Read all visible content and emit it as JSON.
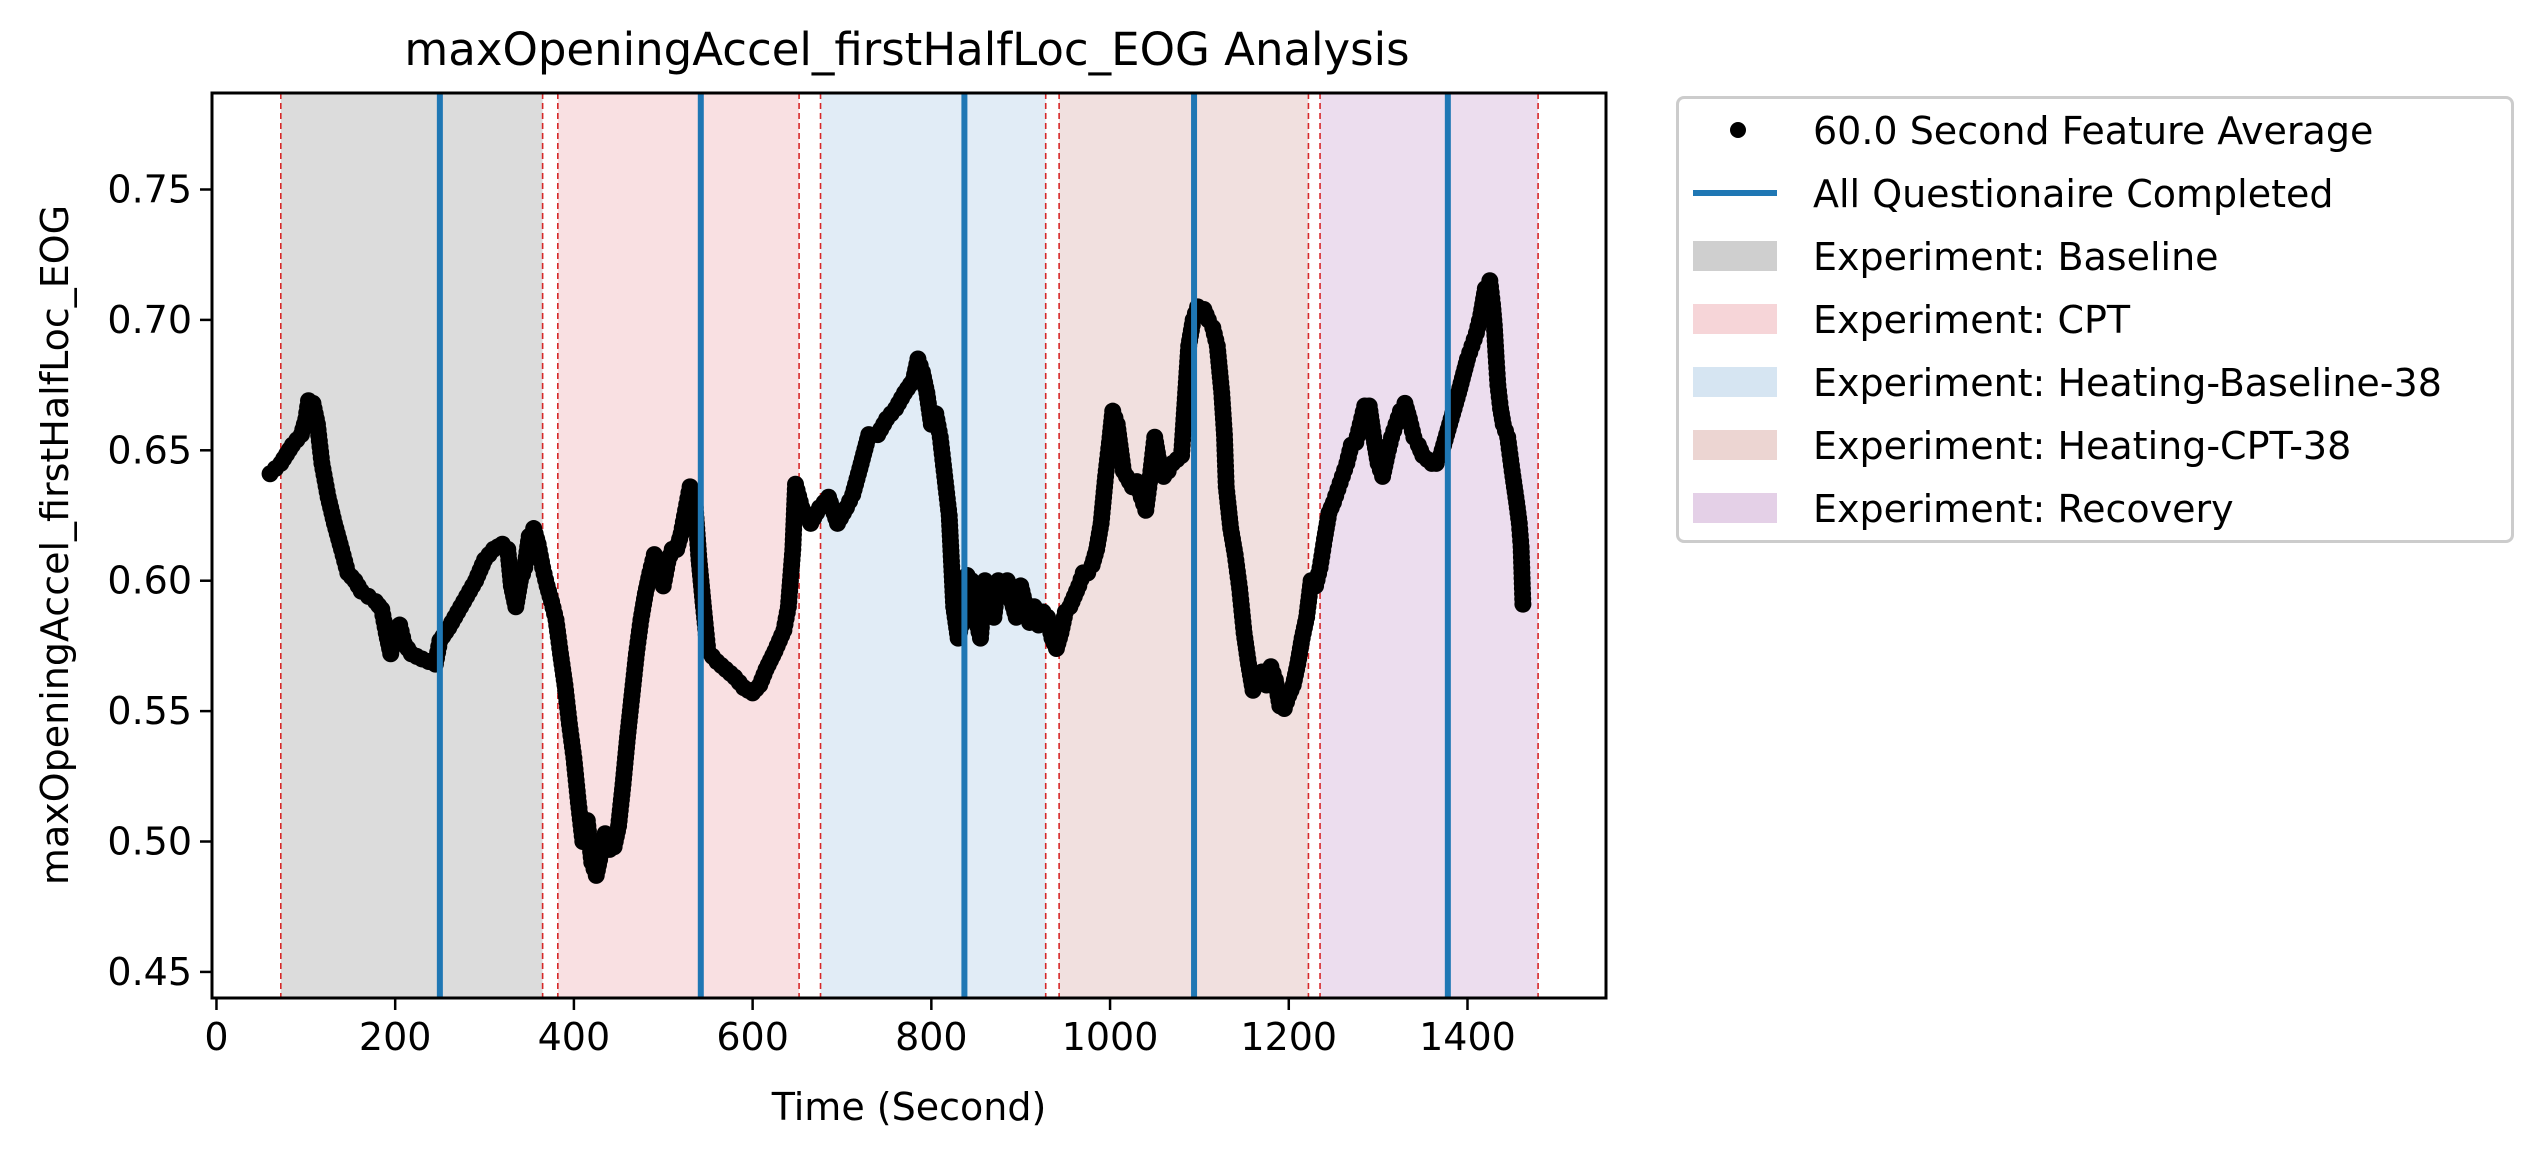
{
  "chart_data": {
    "type": "scatter",
    "title": "maxOpeningAccel_firstHalfLoc_EOG Analysis",
    "xlabel": "Time (Second)",
    "ylabel": "maxOpeningAccel_firstHalfLoc_EOG",
    "xlim": [
      -5,
      1555
    ],
    "ylim": [
      0.44,
      0.787
    ],
    "x_ticks": [
      0,
      200,
      400,
      600,
      800,
      1000,
      1200,
      1400
    ],
    "y_ticks": [
      0.45,
      0.5,
      0.55,
      0.6,
      0.65,
      0.7,
      0.75
    ],
    "y_tick_labels": [
      "0.45",
      "0.50",
      "0.55",
      "0.60",
      "0.65",
      "0.70",
      "0.75"
    ],
    "grid": false,
    "legend_position": "outside-right",
    "series": [
      {
        "name": "60.0 Second Feature Average",
        "style": "dots",
        "color": "#000000",
        "points": [
          [
            60,
            0.641
          ],
          [
            72,
            0.645
          ],
          [
            85,
            0.652
          ],
          [
            95,
            0.656
          ],
          [
            100,
            0.662
          ],
          [
            103,
            0.669
          ],
          [
            108,
            0.668
          ],
          [
            113,
            0.66
          ],
          [
            118,
            0.645
          ],
          [
            125,
            0.632
          ],
          [
            132,
            0.622
          ],
          [
            140,
            0.612
          ],
          [
            147,
            0.603
          ],
          [
            155,
            0.6
          ],
          [
            162,
            0.596
          ],
          [
            170,
            0.594
          ],
          [
            178,
            0.592
          ],
          [
            185,
            0.589
          ],
          [
            190,
            0.58
          ],
          [
            195,
            0.572
          ],
          [
            200,
            0.58
          ],
          [
            205,
            0.583
          ],
          [
            210,
            0.576
          ],
          [
            218,
            0.572
          ],
          [
            230,
            0.57
          ],
          [
            245,
            0.568
          ],
          [
            250,
            0.577
          ],
          [
            260,
            0.582
          ],
          [
            270,
            0.588
          ],
          [
            280,
            0.594
          ],
          [
            290,
            0.6
          ],
          [
            300,
            0.608
          ],
          [
            310,
            0.612
          ],
          [
            320,
            0.614
          ],
          [
            326,
            0.612
          ],
          [
            330,
            0.598
          ],
          [
            335,
            0.59
          ],
          [
            340,
            0.6
          ],
          [
            345,
            0.605
          ],
          [
            350,
            0.617
          ],
          [
            355,
            0.62
          ],
          [
            360,
            0.614
          ],
          [
            365,
            0.605
          ],
          [
            370,
            0.598
          ],
          [
            375,
            0.592
          ],
          [
            380,
            0.585
          ],
          [
            385,
            0.572
          ],
          [
            390,
            0.56
          ],
          [
            395,
            0.545
          ],
          [
            400,
            0.532
          ],
          [
            405,
            0.515
          ],
          [
            410,
            0.5
          ],
          [
            415,
            0.508
          ],
          [
            420,
            0.492
          ],
          [
            425,
            0.487
          ],
          [
            430,
            0.495
          ],
          [
            435,
            0.503
          ],
          [
            440,
            0.497
          ],
          [
            445,
            0.498
          ],
          [
            450,
            0.506
          ],
          [
            455,
            0.522
          ],
          [
            460,
            0.54
          ],
          [
            465,
            0.556
          ],
          [
            470,
            0.572
          ],
          [
            475,
            0.585
          ],
          [
            480,
            0.595
          ],
          [
            485,
            0.603
          ],
          [
            490,
            0.61
          ],
          [
            495,
            0.605
          ],
          [
            500,
            0.598
          ],
          [
            505,
            0.607
          ],
          [
            510,
            0.612
          ],
          [
            515,
            0.612
          ],
          [
            520,
            0.618
          ],
          [
            525,
            0.627
          ],
          [
            530,
            0.636
          ],
          [
            535,
            0.632
          ],
          [
            540,
            0.608
          ],
          [
            545,
            0.59
          ],
          [
            550,
            0.573
          ],
          [
            560,
            0.569
          ],
          [
            570,
            0.566
          ],
          [
            580,
            0.563
          ],
          [
            590,
            0.559
          ],
          [
            600,
            0.557
          ],
          [
            608,
            0.56
          ],
          [
            615,
            0.566
          ],
          [
            625,
            0.573
          ],
          [
            635,
            0.581
          ],
          [
            640,
            0.59
          ],
          [
            645,
            0.612
          ],
          [
            648,
            0.637
          ],
          [
            655,
            0.628
          ],
          [
            665,
            0.622
          ],
          [
            675,
            0.628
          ],
          [
            685,
            0.632
          ],
          [
            695,
            0.622
          ],
          [
            705,
            0.628
          ],
          [
            712,
            0.633
          ],
          [
            720,
            0.643
          ],
          [
            730,
            0.656
          ],
          [
            740,
            0.656
          ],
          [
            750,
            0.662
          ],
          [
            760,
            0.666
          ],
          [
            770,
            0.672
          ],
          [
            780,
            0.677
          ],
          [
            785,
            0.685
          ],
          [
            790,
            0.68
          ],
          [
            795,
            0.672
          ],
          [
            800,
            0.66
          ],
          [
            805,
            0.664
          ],
          [
            810,
            0.655
          ],
          [
            815,
            0.64
          ],
          [
            820,
            0.625
          ],
          [
            825,
            0.59
          ],
          [
            830,
            0.578
          ],
          [
            835,
            0.585
          ],
          [
            840,
            0.602
          ],
          [
            845,
            0.6
          ],
          [
            850,
            0.585
          ],
          [
            855,
            0.578
          ],
          [
            860,
            0.6
          ],
          [
            865,
            0.592
          ],
          [
            870,
            0.586
          ],
          [
            875,
            0.6
          ],
          [
            880,
            0.595
          ],
          [
            885,
            0.6
          ],
          [
            890,
            0.592
          ],
          [
            895,
            0.586
          ],
          [
            900,
            0.598
          ],
          [
            910,
            0.584
          ],
          [
            915,
            0.59
          ],
          [
            920,
            0.583
          ],
          [
            925,
            0.588
          ],
          [
            930,
            0.586
          ],
          [
            935,
            0.578
          ],
          [
            940,
            0.574
          ],
          [
            945,
            0.58
          ],
          [
            950,
            0.588
          ],
          [
            955,
            0.59
          ],
          [
            960,
            0.594
          ],
          [
            965,
            0.598
          ],
          [
            970,
            0.603
          ],
          [
            975,
            0.603
          ],
          [
            980,
            0.606
          ],
          [
            985,
            0.612
          ],
          [
            990,
            0.622
          ],
          [
            995,
            0.64
          ],
          [
            1000,
            0.655
          ],
          [
            1003,
            0.665
          ],
          [
            1008,
            0.66
          ],
          [
            1015,
            0.642
          ],
          [
            1025,
            0.636
          ],
          [
            1030,
            0.638
          ],
          [
            1035,
            0.632
          ],
          [
            1040,
            0.627
          ],
          [
            1045,
            0.64
          ],
          [
            1050,
            0.655
          ],
          [
            1055,
            0.645
          ],
          [
            1060,
            0.64
          ],
          [
            1065,
            0.642
          ],
          [
            1070,
            0.645
          ],
          [
            1080,
            0.648
          ],
          [
            1088,
            0.69
          ],
          [
            1093,
            0.7
          ],
          [
            1098,
            0.705
          ],
          [
            1105,
            0.704
          ],
          [
            1110,
            0.7
          ],
          [
            1115,
            0.697
          ],
          [
            1120,
            0.69
          ],
          [
            1125,
            0.672
          ],
          [
            1128,
            0.656
          ],
          [
            1130,
            0.636
          ],
          [
            1135,
            0.62
          ],
          [
            1140,
            0.61
          ],
          [
            1145,
            0.597
          ],
          [
            1150,
            0.58
          ],
          [
            1155,
            0.568
          ],
          [
            1160,
            0.558
          ],
          [
            1165,
            0.562
          ],
          [
            1170,
            0.565
          ],
          [
            1175,
            0.56
          ],
          [
            1180,
            0.567
          ],
          [
            1185,
            0.562
          ],
          [
            1190,
            0.552
          ],
          [
            1195,
            0.551
          ],
          [
            1200,
            0.556
          ],
          [
            1205,
            0.56
          ],
          [
            1210,
            0.568
          ],
          [
            1215,
            0.578
          ],
          [
            1220,
            0.586
          ],
          [
            1225,
            0.6
          ],
          [
            1230,
            0.598
          ],
          [
            1235,
            0.605
          ],
          [
            1240,
            0.616
          ],
          [
            1245,
            0.626
          ],
          [
            1250,
            0.63
          ],
          [
            1255,
            0.635
          ],
          [
            1260,
            0.64
          ],
          [
            1265,
            0.645
          ],
          [
            1270,
            0.652
          ],
          [
            1275,
            0.653
          ],
          [
            1280,
            0.66
          ],
          [
            1285,
            0.667
          ],
          [
            1290,
            0.667
          ],
          [
            1295,
            0.655
          ],
          [
            1300,
            0.645
          ],
          [
            1305,
            0.64
          ],
          [
            1310,
            0.648
          ],
          [
            1315,
            0.655
          ],
          [
            1320,
            0.66
          ],
          [
            1325,
            0.665
          ],
          [
            1330,
            0.668
          ],
          [
            1335,
            0.662
          ],
          [
            1340,
            0.655
          ],
          [
            1345,
            0.652
          ],
          [
            1350,
            0.648
          ],
          [
            1360,
            0.645
          ],
          [
            1365,
            0.645
          ],
          [
            1370,
            0.648
          ],
          [
            1380,
            0.66
          ],
          [
            1390,
            0.672
          ],
          [
            1400,
            0.685
          ],
          [
            1405,
            0.69
          ],
          [
            1410,
            0.695
          ],
          [
            1415,
            0.702
          ],
          [
            1420,
            0.712
          ],
          [
            1425,
            0.715
          ],
          [
            1428,
            0.706
          ],
          [
            1430,
            0.698
          ],
          [
            1432,
            0.686
          ],
          [
            1434,
            0.675
          ],
          [
            1437,
            0.666
          ],
          [
            1440,
            0.66
          ],
          [
            1445,
            0.655
          ],
          [
            1450,
            0.642
          ],
          [
            1455,
            0.63
          ],
          [
            1458,
            0.622
          ],
          [
            1460,
            0.613
          ],
          [
            1462,
            0.591
          ]
        ]
      },
      {
        "name": "All Questionaire Completed",
        "style": "vertical-lines",
        "color": "#1f77b4",
        "x": [
          250,
          542,
          837,
          1094,
          1378
        ]
      }
    ],
    "regions": [
      {
        "name": "Experiment: Baseline",
        "color": "#bfbfbf",
        "start": 72,
        "end": 365
      },
      {
        "name": "Experiment: CPT",
        "color": "#f4c7cb",
        "start": 382,
        "end": 652
      },
      {
        "name": "Experiment: Heating-Baseline-38",
        "color": "#c9ddee",
        "start": 676,
        "end": 928
      },
      {
        "name": "Experiment: Heating-CPT-38",
        "color": "#e6c7c4",
        "start": 943,
        "end": 1222
      },
      {
        "name": "Experiment: Recovery",
        "color": "#dcc1e0",
        "start": 1235,
        "end": 1479
      }
    ],
    "boundary_lines": [
      72,
      365,
      382,
      652,
      676,
      928,
      943,
      1222,
      1235,
      1479
    ],
    "boundary_color": "#d62728"
  }
}
